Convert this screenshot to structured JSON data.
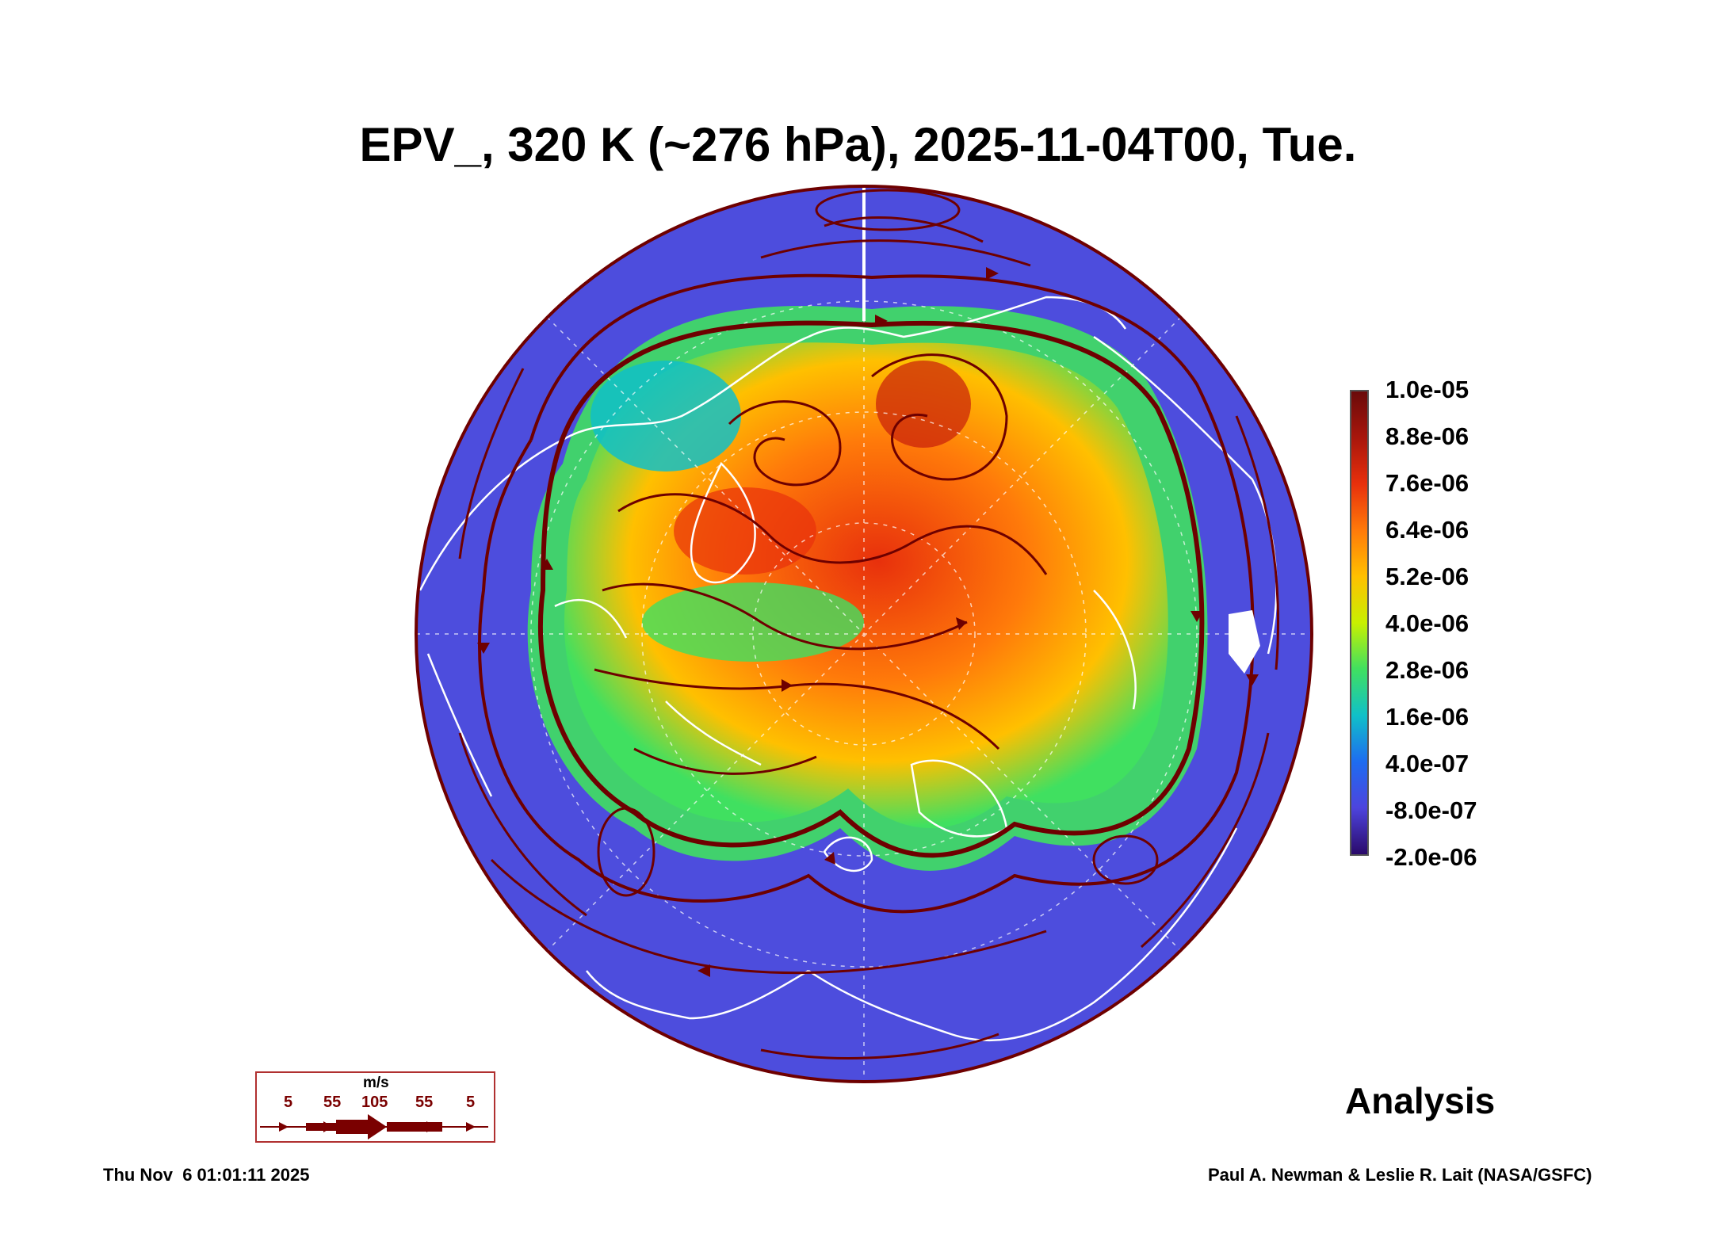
{
  "title": "EPV_, 320 K (~276 hPa), 2025-11-04T00, Tue.",
  "colorbar": {
    "labels": [
      "1.0e-05",
      "8.8e-06",
      "7.6e-06",
      "6.4e-06",
      "5.2e-06",
      "4.0e-06",
      "2.8e-06",
      "1.6e-06",
      "4.0e-07",
      "-8.0e-07",
      "-2.0e-06"
    ],
    "colors": [
      "#6a0a0a",
      "#a8160c",
      "#e8300c",
      "#ff7a0a",
      "#ffc000",
      "#c8f000",
      "#40e060",
      "#10c0c8",
      "#1e6cf0",
      "#4d44dd",
      "#2a0a6a"
    ]
  },
  "map": {
    "ocean_color": "#4d4ddd",
    "land_outline_color": "#ffffff",
    "streamline_color": "#6e0000"
  },
  "legend": {
    "unit": "m/s",
    "speeds": [
      "5",
      "55",
      "105",
      "55",
      "5"
    ]
  },
  "analysis_label": "Analysis",
  "footer": {
    "timestamp": "Thu Nov  6 01:01:11 2025",
    "credit": "Paul A. Newman & Leslie R. Lait (NASA/GSFC)"
  }
}
